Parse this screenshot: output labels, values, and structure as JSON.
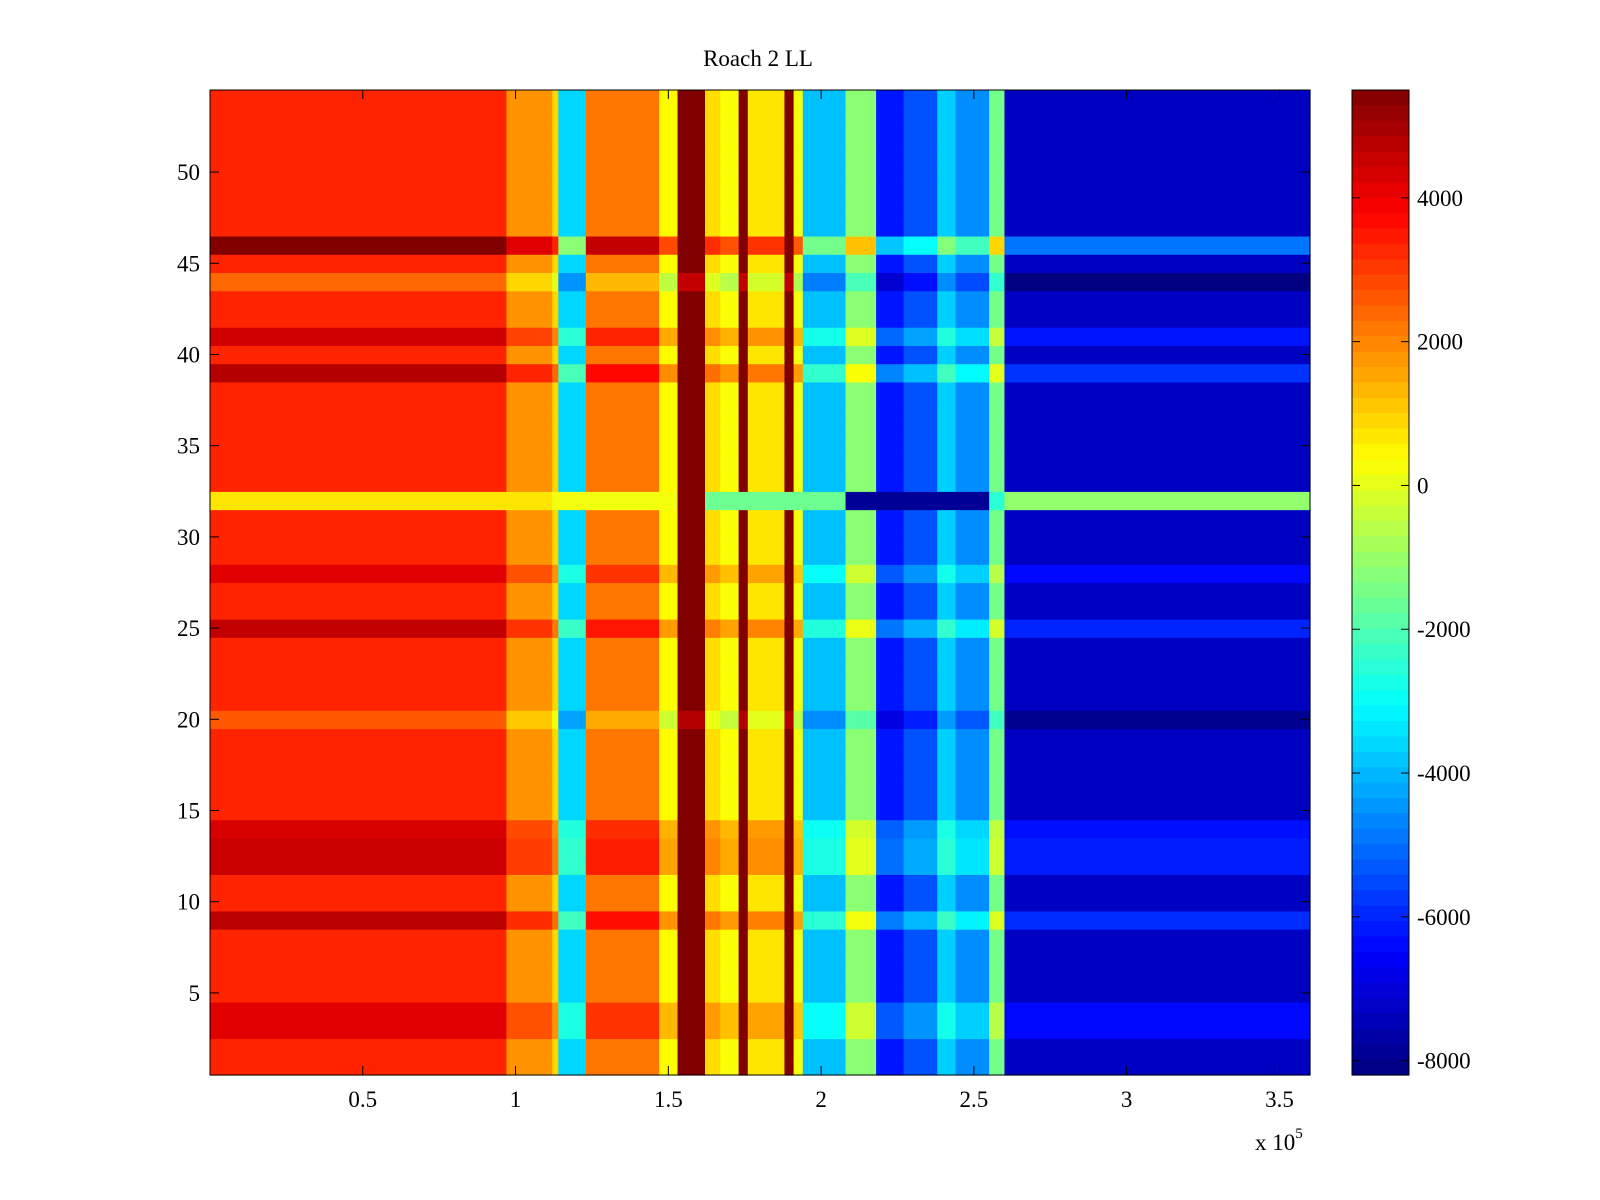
{
  "chart_data": {
    "type": "heatmap",
    "title": "Roach 2 LL",
    "xlabel": "",
    "ylabel": "",
    "x_exponent_label": "x 10",
    "x_exponent_power": "5",
    "xlim": [
      0,
      3.6
    ],
    "ylim": [
      0.5,
      54.5
    ],
    "x_ticks": [
      0.5,
      1,
      1.5,
      2,
      2.5,
      3,
      3.5
    ],
    "x_tick_labels": [
      "0.5",
      "1",
      "1.5",
      "2",
      "2.5",
      "3",
      "3.5"
    ],
    "y_ticks": [
      5,
      10,
      15,
      20,
      25,
      30,
      35,
      40,
      45,
      50
    ],
    "y_tick_labels": [
      "5",
      "10",
      "15",
      "20",
      "25",
      "30",
      "35",
      "40",
      "45",
      "50"
    ],
    "rows": 54,
    "colorbar": {
      "min": -8200,
      "max": 5500,
      "ticks": [
        4000,
        2000,
        0,
        -2000,
        -4000,
        -6000,
        -8000
      ],
      "tick_labels": [
        "4000",
        "2000",
        "0",
        "-2000",
        "-4000",
        "-6000",
        "-8000"
      ],
      "colormap": "jet"
    },
    "column_bands_x1e5": [
      {
        "x0": 0.0,
        "x1": 0.97,
        "value": 3300
      },
      {
        "x0": 0.97,
        "x1": 1.12,
        "value": 1800
      },
      {
        "x0": 1.12,
        "x1": 1.14,
        "value": 900
      },
      {
        "x0": 1.14,
        "x1": 1.23,
        "value": -3600
      },
      {
        "x0": 1.23,
        "x1": 1.47,
        "value": 2200
      },
      {
        "x0": 1.47,
        "x1": 1.53,
        "value": 400
      },
      {
        "x0": 1.53,
        "x1": 1.62,
        "value": 5500
      },
      {
        "x0": 1.62,
        "x1": 1.67,
        "value": 800
      },
      {
        "x0": 1.67,
        "x1": 1.73,
        "value": 300
      },
      {
        "x0": 1.73,
        "x1": 1.76,
        "value": 5500
      },
      {
        "x0": 1.76,
        "x1": 1.88,
        "value": 700
      },
      {
        "x0": 1.88,
        "x1": 1.91,
        "value": 5500
      },
      {
        "x0": 1.91,
        "x1": 1.94,
        "value": 200
      },
      {
        "x0": 1.94,
        "x1": 2.08,
        "value": -3900
      },
      {
        "x0": 2.08,
        "x1": 2.18,
        "value": -1200
      },
      {
        "x0": 2.18,
        "x1": 2.27,
        "value": -6200
      },
      {
        "x0": 2.27,
        "x1": 2.38,
        "value": -5400
      },
      {
        "x0": 2.38,
        "x1": 2.44,
        "value": -3700
      },
      {
        "x0": 2.44,
        "x1": 2.55,
        "value": -4600
      },
      {
        "x0": 2.55,
        "x1": 2.6,
        "value": -1500
      },
      {
        "x0": 2.6,
        "x1": 3.6,
        "value": -7300
      }
    ],
    "row_offsets": [
      {
        "row": 3,
        "value": 900
      },
      {
        "row": 4,
        "value": 900
      },
      {
        "row": 9,
        "value": 1400
      },
      {
        "row": 12,
        "value": 1200
      },
      {
        "row": 13,
        "value": 1200
      },
      {
        "row": 14,
        "value": 1000
      },
      {
        "row": 20,
        "value": -700
      },
      {
        "row": 25,
        "value": 1300
      },
      {
        "row": 28,
        "value": 900
      },
      {
        "row": 39,
        "value": 1500
      },
      {
        "row": 41,
        "value": 1100
      },
      {
        "row": 44,
        "value": -900
      },
      {
        "row": 46,
        "value": 2400
      }
    ],
    "special_row": {
      "row": 32,
      "segments": [
        {
          "x0": 0.0,
          "x1": 1.12,
          "value": 700
        },
        {
          "x0": 1.12,
          "x1": 1.53,
          "value": 200
        },
        {
          "x0": 1.53,
          "x1": 1.62,
          "value": 5500
        },
        {
          "x0": 1.62,
          "x1": 2.08,
          "value": -1600
        },
        {
          "x0": 2.08,
          "x1": 2.55,
          "value": -7900
        },
        {
          "x0": 2.55,
          "x1": 2.6,
          "value": -2500
        },
        {
          "x0": 2.6,
          "x1": 3.6,
          "value": -1100
        }
      ]
    }
  }
}
